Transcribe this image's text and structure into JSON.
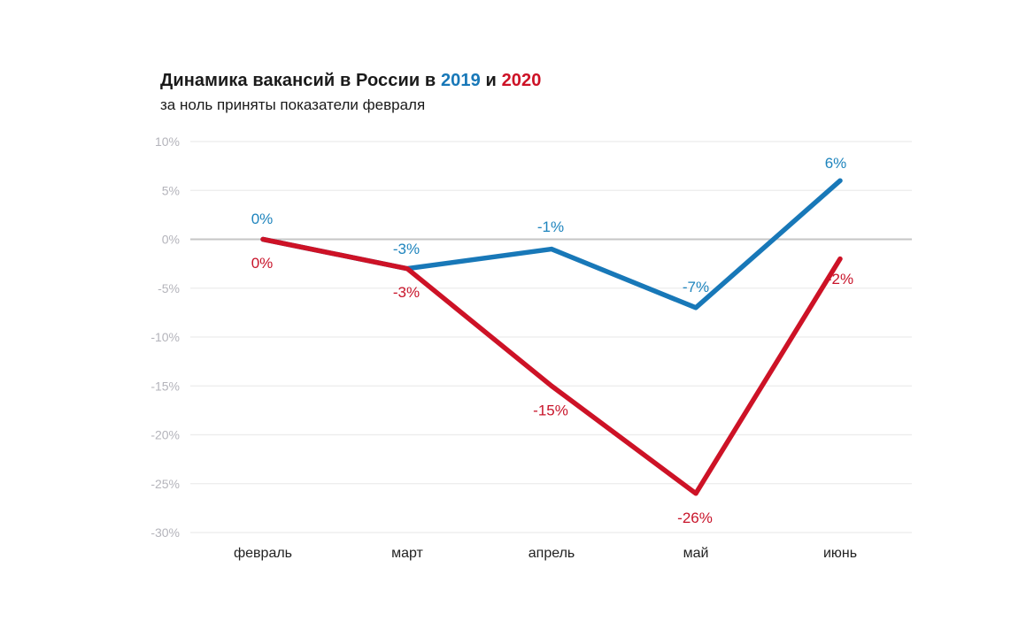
{
  "header": {
    "title_prefix": "Динамика вакансий в России в ",
    "title_year_2019": "2019",
    "title_conjunction": " и ",
    "title_year_2020": "2020",
    "subtitle": "за ноль приняты показатели февраля"
  },
  "colors": {
    "blue_line": "#1878b8",
    "blue_label": "#1e84bd",
    "red_line": "#cd1226",
    "red_label": "#c8142a",
    "gridline": "#ececec",
    "zero_line": "#c6c6c6",
    "y_tick_text": "#b4b4bb",
    "x_tick_text": "#222222",
    "title_text": "#1a1a1a"
  },
  "chart_data": {
    "type": "line",
    "title": "Динамика вакансий в России в 2019 и 2020",
    "subtitle": "за ноль приняты показатели февраля",
    "categories": [
      "февраль",
      "март",
      "апрель",
      "май",
      "июнь"
    ],
    "series": [
      {
        "name": "2019",
        "color_key": "blue",
        "values": [
          0,
          -3,
          -1,
          -7,
          6
        ],
        "point_labels": [
          "0%",
          "-3%",
          "-1%",
          "-7%",
          "6%"
        ]
      },
      {
        "name": "2020",
        "color_key": "red",
        "values": [
          0,
          -3,
          -15,
          -26,
          -2
        ],
        "point_labels": [
          "0%",
          "-3%",
          "-15%",
          "-26%",
          "-2%"
        ]
      }
    ],
    "yticks": [
      10,
      5,
      0,
      -5,
      -10,
      -15,
      -20,
      -25,
      -30
    ],
    "ytick_labels": [
      "10%",
      "5%",
      "0%",
      "-5%",
      "-10%",
      "-15%",
      "-20%",
      "-25%",
      "-30%"
    ],
    "ylim": [
      -30,
      10
    ],
    "grid": true,
    "legend_position": "in-title"
  }
}
